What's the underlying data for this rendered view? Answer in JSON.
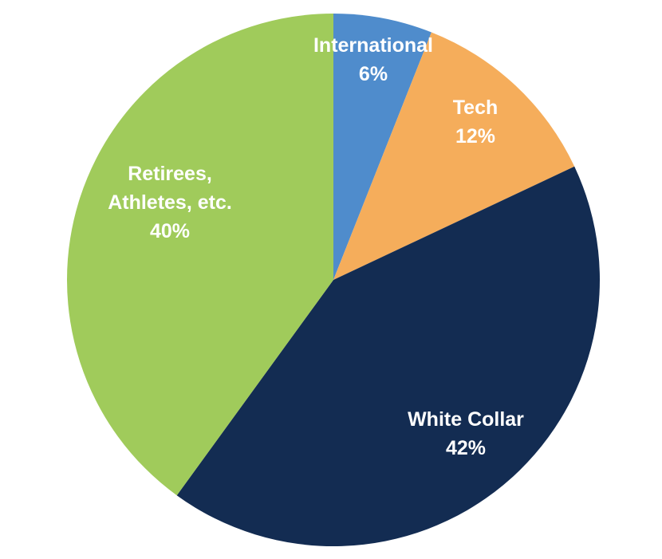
{
  "chart_data": {
    "type": "pie",
    "title": "",
    "start_angle_deg": 0,
    "direction": "clockwise",
    "slices": [
      {
        "label_lines": [
          "International"
        ],
        "value": 6,
        "value_label": "6%",
        "color": "#4f8ccc"
      },
      {
        "label_lines": [
          "Tech"
        ],
        "value": 12,
        "value_label": "12%",
        "color": "#f5ad5b"
      },
      {
        "label_lines": [
          "White Collar"
        ],
        "value": 42,
        "value_label": "42%",
        "color": "#132c52"
      },
      {
        "label_lines": [
          "Retirees,",
          "Athletes, etc."
        ],
        "value": 40,
        "value_label": "40%",
        "color": "#a0cb5b"
      }
    ]
  }
}
